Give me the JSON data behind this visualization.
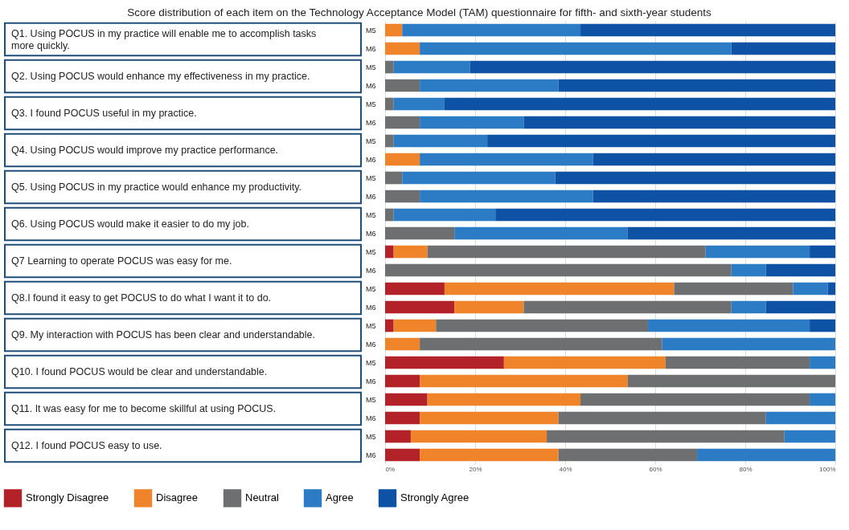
{
  "chart_data": {
    "type": "bar",
    "orientation": "horizontal",
    "stacked": true,
    "title": "Score distribution of each item on the Technology Acceptance Model (TAM) questionnaire for fifth- and sixth-year students",
    "categories": [
      "M5",
      "M6",
      "M5",
      "M6",
      "M5",
      "M6",
      "M5",
      "M6",
      "M5",
      "M6",
      "M5",
      "M6",
      "M5",
      "M6",
      "M5",
      "M6",
      "M5",
      "M6",
      "M5",
      "M6",
      "M5",
      "M6",
      "M5",
      "M6"
    ],
    "annotations": [
      "Q1. Using POCUS in my practice will enable me to accomplish tasks more quickly.",
      "Q2. Using POCUS would enhance my effectiveness in my practice.",
      "Q3. I found POCUS useful in my practice.",
      "Q4. Using POCUS would improve my practice performance.",
      "Q5. Using POCUS in my practice would enhance my productivity.",
      "Q6. Using POCUS would make it easier to do my job.",
      "Q7 Learning to operate POCUS was easy for me.",
      "Q8.I found it easy to get POCUS to do what I want it to do.",
      "Q9. My interaction with POCUS has been clear and understandable.",
      "Q10. I found POCUS would be clear and understandable.",
      "Q11. It was easy for me to become skillful at using POCUS.",
      "Q12. I found POCUS easy to use."
    ],
    "series": [
      {
        "name": "Strongly Disagree",
        "color": "#b22228",
        "values": [
          null,
          null,
          null,
          null,
          null,
          null,
          null,
          null,
          null,
          null,
          null,
          null,
          1.9,
          null,
          13.2,
          15.4,
          1.9,
          null,
          26.4,
          7.7,
          9.4,
          7.7,
          5.7,
          7.7
        ]
      },
      {
        "name": "Disagree",
        "color": "#f0842a",
        "values": [
          3.8,
          7.7,
          null,
          null,
          null,
          null,
          null,
          7.7,
          null,
          null,
          null,
          null,
          7.5,
          null,
          51.0,
          15.4,
          9.4,
          7.7,
          35.9,
          46.2,
          34.0,
          30.8,
          30.2,
          30.8
        ]
      },
      {
        "name": "Neutral",
        "color": "#6d6f70",
        "values": [
          null,
          null,
          1.9,
          7.7,
          1.9,
          7.7,
          1.9,
          null,
          3.8,
          7.7,
          1.9,
          15.4,
          61.8,
          76.9,
          26.4,
          46.1,
          47.1,
          53.8,
          32.0,
          46.1,
          50.9,
          46.1,
          52.8,
          30.8
        ]
      },
      {
        "name": "Agree",
        "color": "#2b7bc5",
        "values": [
          39.6,
          69.2,
          17.0,
          30.8,
          11.3,
          23.1,
          20.8,
          38.5,
          34.0,
          38.5,
          22.6,
          38.5,
          23.1,
          7.7,
          7.7,
          7.7,
          35.9,
          38.5,
          5.7,
          null,
          5.7,
          15.4,
          11.3,
          30.7
        ]
      },
      {
        "name": "Strongly Agree",
        "color": "#0d52a4",
        "values": [
          56.6,
          23.1,
          81.1,
          61.5,
          86.8,
          69.2,
          77.3,
          53.8,
          62.2,
          53.8,
          75.5,
          46.1,
          5.7,
          15.4,
          1.7,
          15.4,
          5.7,
          null,
          null,
          null,
          null,
          null,
          null,
          null
        ]
      }
    ],
    "xlim": [
      0,
      100
    ],
    "xticks": [
      {
        "value": 0,
        "label": "0%"
      },
      {
        "value": 20,
        "label": "20%"
      },
      {
        "value": 40,
        "label": "40%"
      },
      {
        "value": 60,
        "label": "60%"
      },
      {
        "value": 80,
        "label": "80%"
      },
      {
        "value": 100,
        "label": "100%"
      }
    ],
    "grid": "x",
    "legend": "bottom"
  }
}
